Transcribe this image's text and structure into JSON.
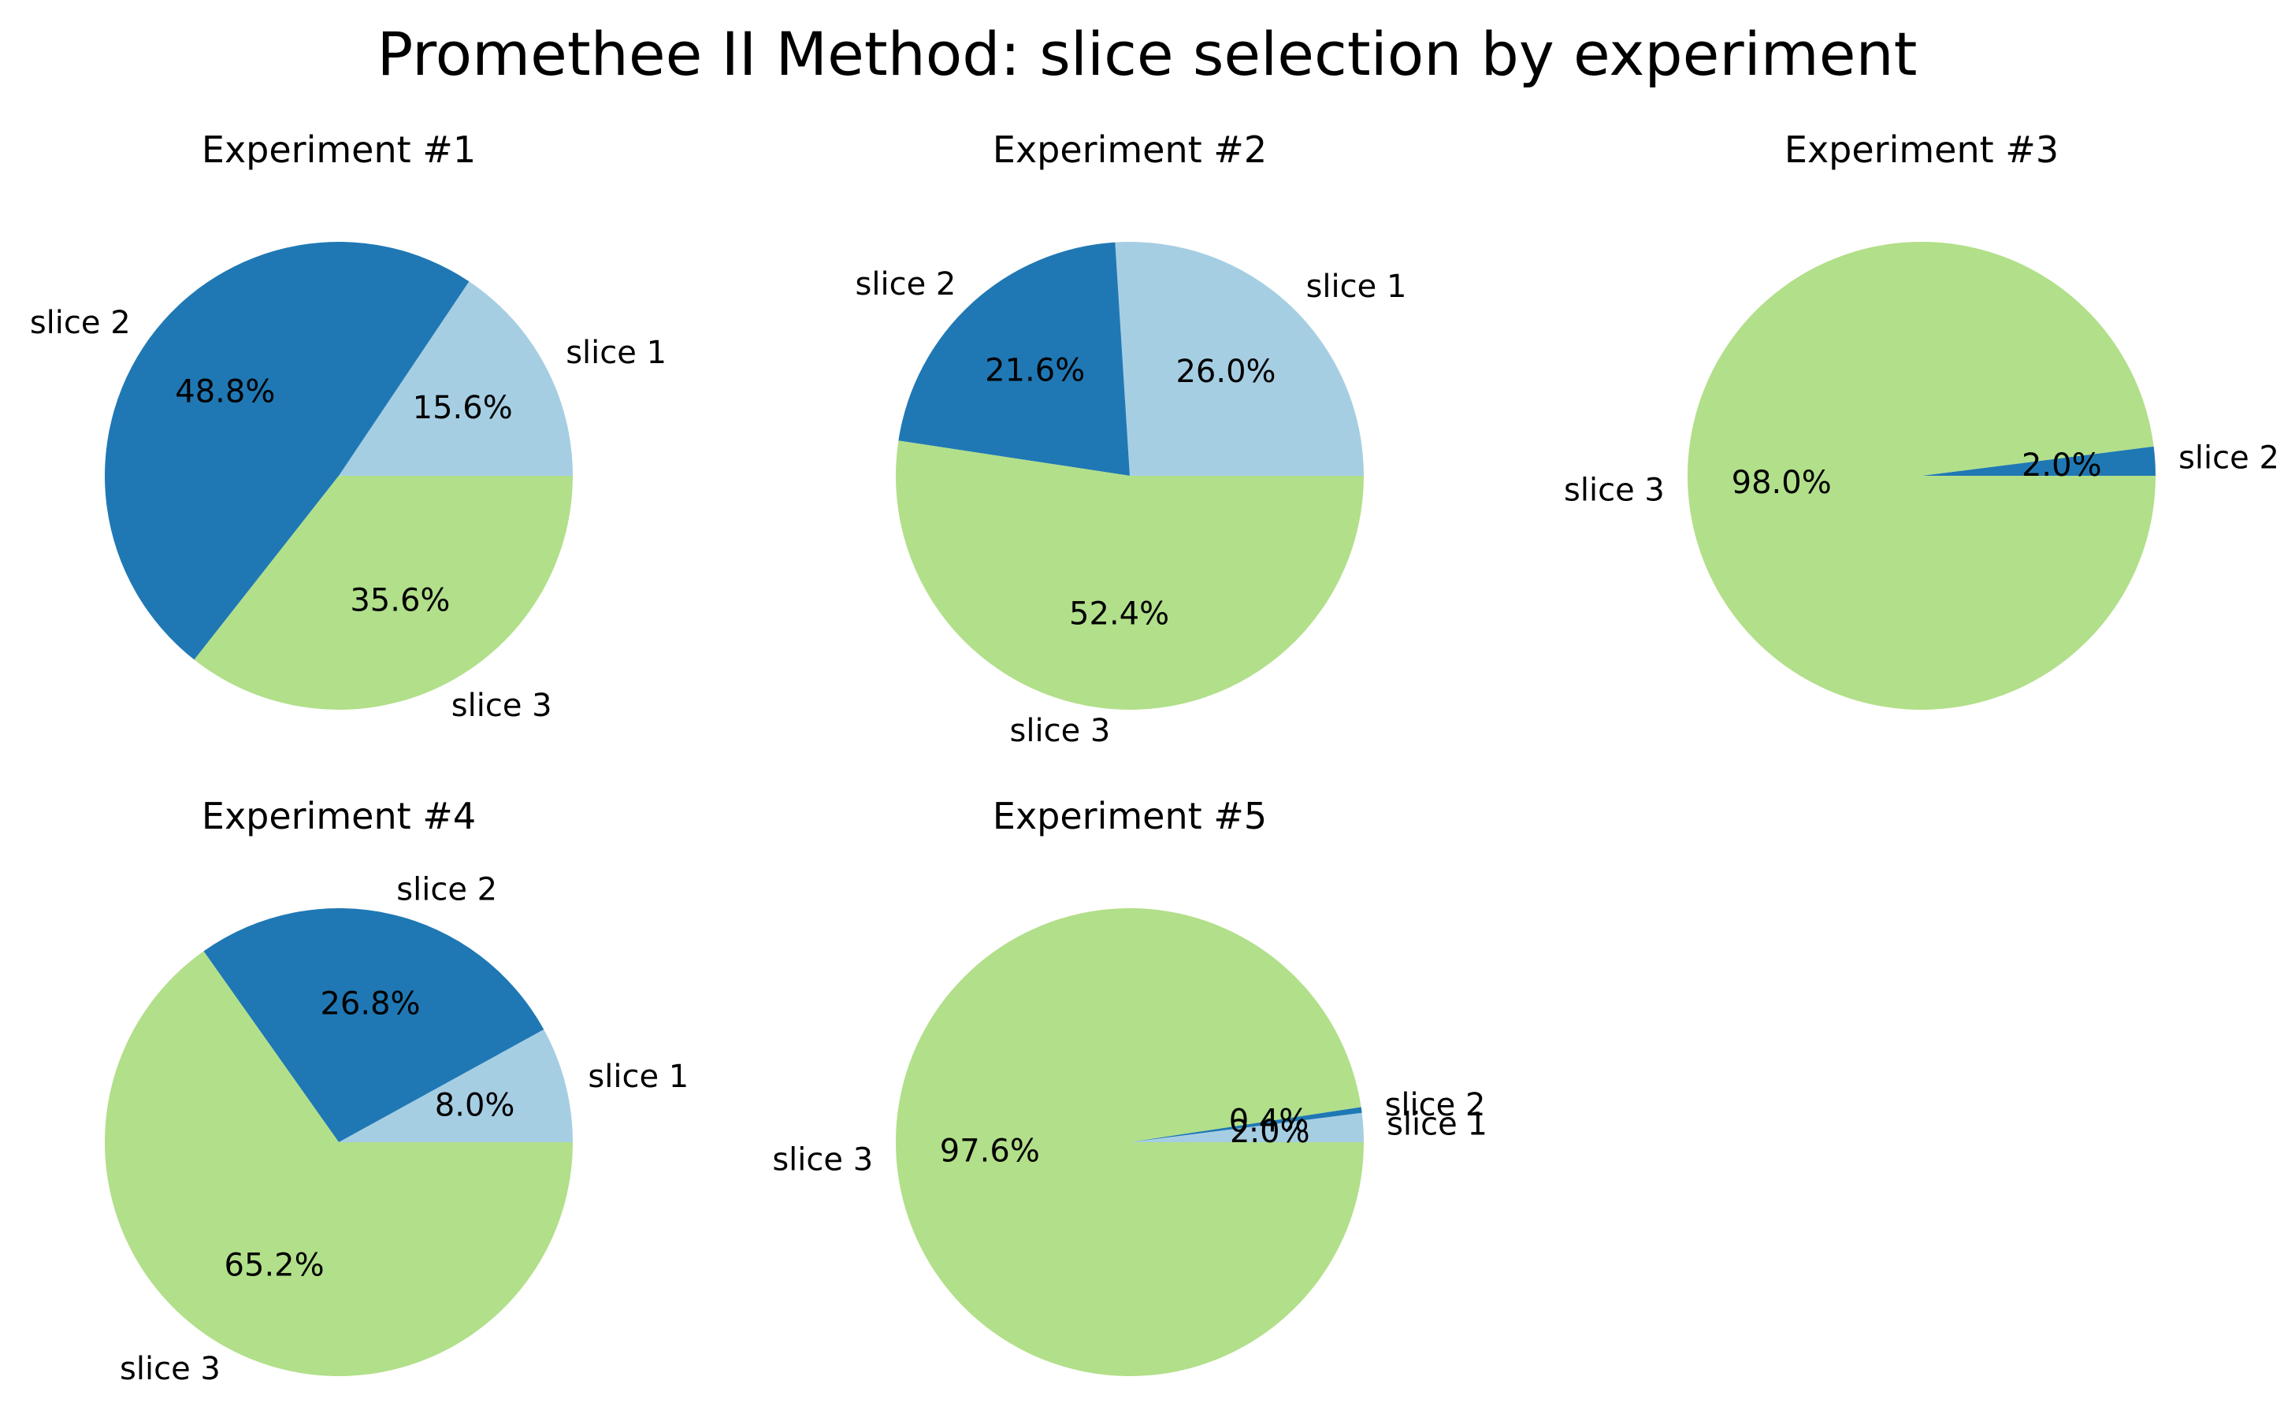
{
  "figure_title": "Promethee II Method: slice selection by experiment",
  "colors": {
    "slice 1": "#a6cee3",
    "slice 2": "#1f78b4",
    "slice 3": "#b2df8a"
  },
  "chart_data": [
    {
      "type": "pie",
      "title": "Experiment #1",
      "labels": [
        "slice 1",
        "slice 2",
        "slice 3"
      ],
      "values": [
        15.6,
        48.8,
        35.6
      ],
      "percent_labels": [
        "15.6%",
        "48.8%",
        "35.6%"
      ]
    },
    {
      "type": "pie",
      "title": "Experiment #2",
      "labels": [
        "slice 1",
        "slice 2",
        "slice 3"
      ],
      "values": [
        26.0,
        21.6,
        52.4
      ],
      "percent_labels": [
        "26.0%",
        "21.6%",
        "52.4%"
      ]
    },
    {
      "type": "pie",
      "title": "Experiment #3",
      "labels": [
        "slice 2",
        "slice 3"
      ],
      "values": [
        2.0,
        98.0
      ],
      "percent_labels": [
        "2.0%",
        "98.0%"
      ]
    },
    {
      "type": "pie",
      "title": "Experiment #4",
      "labels": [
        "slice 1",
        "slice 2",
        "slice 3"
      ],
      "values": [
        8.0,
        26.8,
        65.2
      ],
      "percent_labels": [
        "8.0%",
        "26.8%",
        "65.2%"
      ]
    },
    {
      "type": "pie",
      "title": "Experiment #5",
      "labels": [
        "slice 1",
        "slice 2",
        "slice 3"
      ],
      "values": [
        2.0,
        0.4,
        97.6
      ],
      "percent_labels": [
        "2.0%",
        "0.4%",
        "97.6%"
      ]
    }
  ]
}
